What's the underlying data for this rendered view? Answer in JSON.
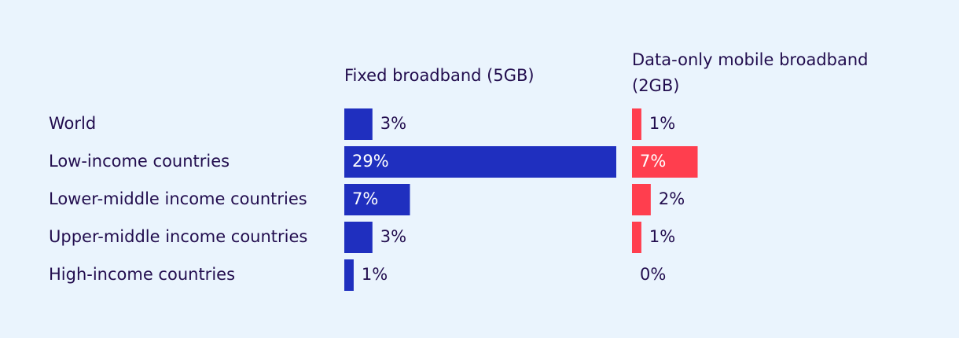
{
  "chart_data": {
    "type": "bar",
    "orientation": "horizontal",
    "categories": [
      "World",
      "Low-income countries",
      "Lower-middle income countries",
      "Upper-middle income countries",
      "High-income countries"
    ],
    "series": [
      {
        "name": "Fixed broadband (5GB)",
        "color": "#1f2fbf",
        "values": [
          3,
          29,
          7,
          3,
          1
        ],
        "value_labels": [
          "3%",
          "29%",
          "7%",
          "3%",
          "1%"
        ]
      },
      {
        "name": "Data-only mobile broadband (2GB)",
        "color": "#ff3e4e",
        "values": [
          1,
          7,
          2,
          1,
          0
        ],
        "value_labels": [
          "1%",
          "7%",
          "2%",
          "1%",
          "0%"
        ]
      }
    ]
  }
}
